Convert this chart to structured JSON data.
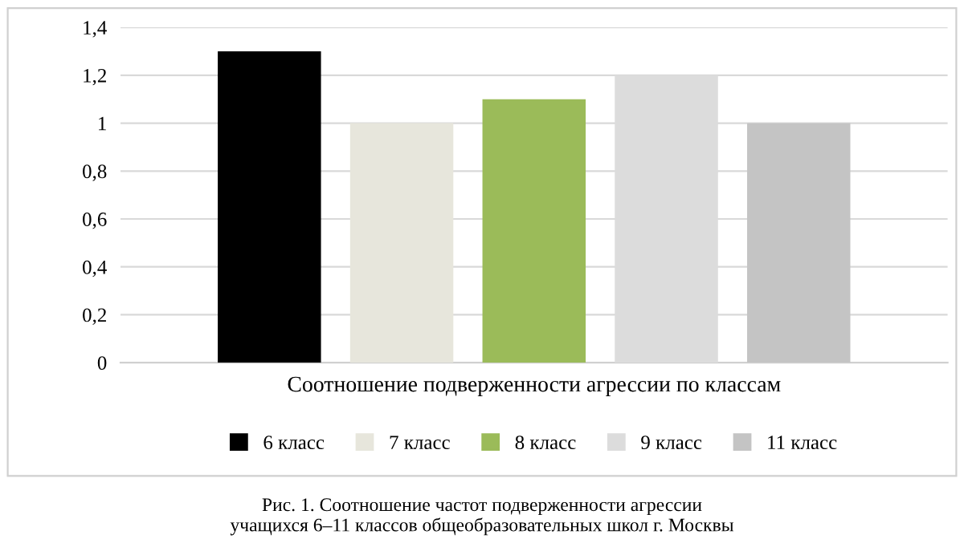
{
  "chart_data": {
    "type": "bar",
    "categories": [
      "Соотношение подверженности агрессии по классам"
    ],
    "series": [
      {
        "name": "6 класс",
        "color": "#000000",
        "values": [
          1.3
        ]
      },
      {
        "name": "7 класс",
        "color": "#e7e6dc",
        "values": [
          1.0
        ]
      },
      {
        "name": "8 класс",
        "color": "#9bbb59",
        "values": [
          1.1
        ]
      },
      {
        "name": "9 класс",
        "color": "#dcdcdc",
        "values": [
          1.2
        ]
      },
      {
        "name": "11 класс",
        "color": "#c4c4c4",
        "values": [
          1.0
        ]
      }
    ],
    "ylim": [
      0,
      1.4
    ],
    "yticks": [
      0,
      {
        "value": 0.2,
        "label": "0,2"
      },
      {
        "value": 0.4,
        "label": "0,4"
      },
      {
        "value": 0.6,
        "label": "0,6"
      },
      {
        "value": 0.8,
        "label": "0,8"
      },
      1,
      {
        "value": 1.2,
        "label": "1,2"
      },
      {
        "value": 1.4,
        "label": "1,4"
      }
    ],
    "grid": "y",
    "legend": "bottom",
    "annotations": [
      "Рис. 1. Соотношение частот подверженности агрессии\nучащихся 6–11 классов общеобразовательных школ г. Москвы"
    ]
  }
}
